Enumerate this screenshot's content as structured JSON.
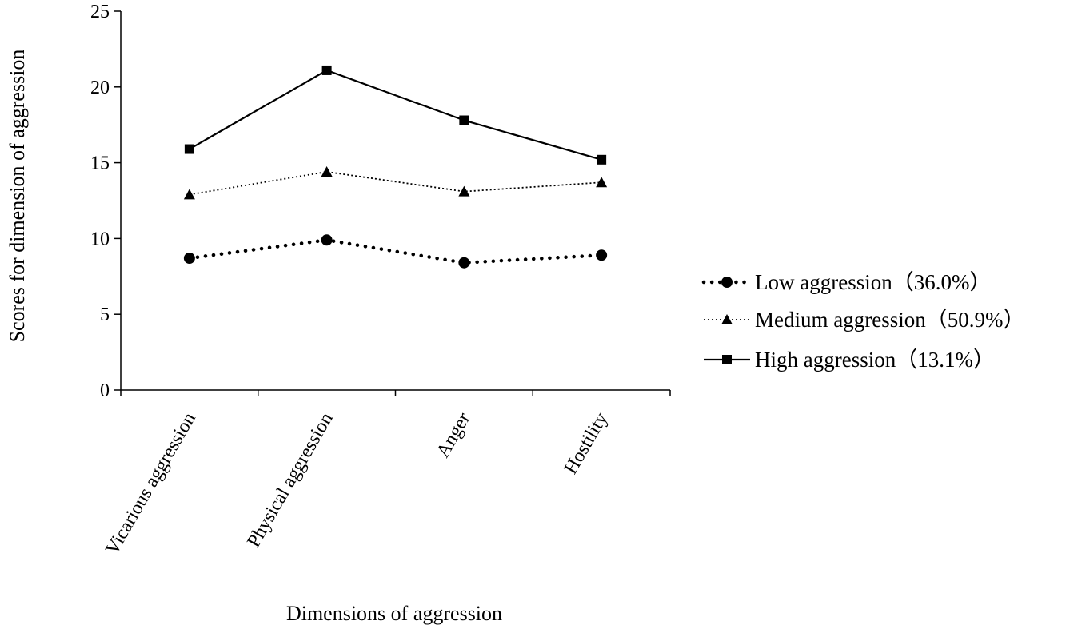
{
  "chart_data": {
    "type": "line",
    "title": "",
    "xlabel": "Dimensions of aggression",
    "ylabel": "Scores for dimension of aggression",
    "categories": [
      "Vicarious aggression",
      "Physical aggression",
      "Anger",
      "Hostility"
    ],
    "ylim": [
      0,
      25
    ],
    "yticks": [
      0,
      5,
      10,
      15,
      20,
      25
    ],
    "grid": false,
    "legend_position": "right",
    "series": [
      {
        "name": "Low aggression（36.0%）",
        "values": [
          8.7,
          9.9,
          8.4,
          8.9
        ],
        "line_style": "dotted-heavy",
        "marker": "circle",
        "color": "#000000"
      },
      {
        "name": "Medium aggression（50.9%）",
        "values": [
          12.9,
          14.4,
          13.1,
          13.7
        ],
        "line_style": "dotted",
        "marker": "triangle",
        "color": "#000000"
      },
      {
        "name": "High aggression（13.1%）",
        "values": [
          15.9,
          21.1,
          17.8,
          15.2
        ],
        "line_style": "solid",
        "marker": "square",
        "color": "#000000"
      }
    ]
  }
}
